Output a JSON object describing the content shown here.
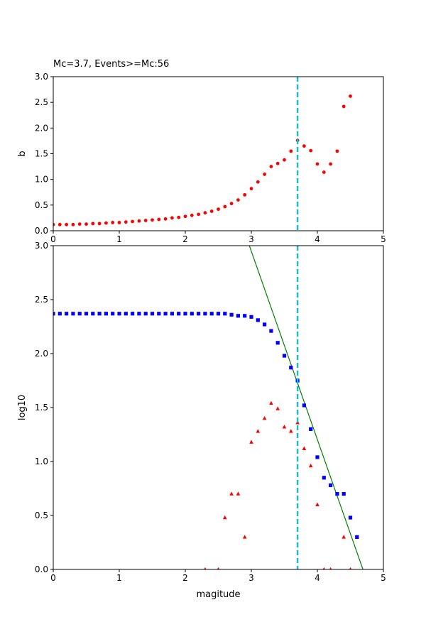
{
  "chart_data": [
    {
      "type": "scatter",
      "title": "Mc=3.7, Events>=Mc:56",
      "xlabel": "",
      "ylabel": "b",
      "xlim": [
        0,
        5
      ],
      "ylim": [
        0,
        3
      ],
      "xticks": [
        "0",
        "1",
        "2",
        "3",
        "4",
        "5"
      ],
      "yticks": [
        "0.0",
        "0.5",
        "1.0",
        "1.5",
        "2.0",
        "2.5",
        "3.0"
      ],
      "grid": false,
      "mc": 3.7,
      "series": [
        {
          "marker": "circle",
          "color": "#ff0000",
          "x": [
            0.0,
            0.1,
            0.2,
            0.3,
            0.4,
            0.5,
            0.6,
            0.7,
            0.8,
            0.9,
            1.0,
            1.1,
            1.2,
            1.3,
            1.4,
            1.5,
            1.6,
            1.7,
            1.8,
            1.9,
            2.0,
            2.1,
            2.2,
            2.3,
            2.4,
            2.5,
            2.6,
            2.7,
            2.8,
            2.9,
            3.0,
            3.1,
            3.2,
            3.3,
            3.4,
            3.5,
            3.6,
            3.7,
            3.8,
            3.9,
            4.0,
            4.1,
            4.2,
            4.3,
            4.4,
            4.5
          ],
          "y": [
            0.12,
            0.12,
            0.12,
            0.12,
            0.13,
            0.13,
            0.14,
            0.14,
            0.15,
            0.16,
            0.16,
            0.17,
            0.18,
            0.19,
            0.2,
            0.21,
            0.22,
            0.23,
            0.25,
            0.26,
            0.28,
            0.3,
            0.32,
            0.35,
            0.38,
            0.42,
            0.47,
            0.53,
            0.6,
            0.7,
            0.82,
            0.95,
            1.1,
            1.25,
            1.31,
            1.38,
            1.55,
            1.76,
            1.65,
            1.56,
            1.3,
            1.14,
            1.3,
            1.55,
            2.42,
            2.62
          ]
        }
      ]
    },
    {
      "type": "scatter",
      "title": "",
      "xlabel": "magitude",
      "ylabel": "log10",
      "xlim": [
        0,
        5
      ],
      "ylim": [
        0,
        3
      ],
      "xticks": [
        "0",
        "1",
        "2",
        "3",
        "4",
        "5"
      ],
      "yticks": [
        "0.0",
        "0.5",
        "1.0",
        "1.5",
        "2.0",
        "2.5",
        "3.0"
      ],
      "grid": false,
      "mc": 3.7,
      "fit_line": {
        "color": "#008000",
        "x": [
          2.97,
          4.69
        ],
        "y": [
          3.0,
          0.0
        ]
      },
      "series": [
        {
          "marker": "square",
          "color": "#0000ff",
          "x": [
            0.0,
            0.1,
            0.2,
            0.3,
            0.4,
            0.5,
            0.6,
            0.7,
            0.8,
            0.9,
            1.0,
            1.1,
            1.2,
            1.3,
            1.4,
            1.5,
            1.6,
            1.7,
            1.8,
            1.9,
            2.0,
            2.1,
            2.2,
            2.3,
            2.4,
            2.5,
            2.6,
            2.7,
            2.8,
            2.9,
            3.0,
            3.1,
            3.2,
            3.3,
            3.4,
            3.5,
            3.6,
            3.7,
            3.8,
            3.9,
            4.0,
            4.1,
            4.2,
            4.3,
            4.4,
            4.5,
            4.6
          ],
          "y": [
            2.37,
            2.37,
            2.37,
            2.37,
            2.37,
            2.37,
            2.37,
            2.37,
            2.37,
            2.37,
            2.37,
            2.37,
            2.37,
            2.37,
            2.37,
            2.37,
            2.37,
            2.37,
            2.37,
            2.37,
            2.37,
            2.37,
            2.37,
            2.37,
            2.37,
            2.37,
            2.37,
            2.36,
            2.35,
            2.35,
            2.34,
            2.31,
            2.27,
            2.21,
            2.1,
            1.98,
            1.87,
            1.75,
            1.52,
            1.3,
            1.04,
            0.85,
            0.78,
            0.7,
            0.7,
            0.48,
            0.3
          ]
        },
        {
          "marker": "triangle",
          "color": "#ff0000",
          "x": [
            2.3,
            2.5,
            2.6,
            2.7,
            2.8,
            2.9,
            3.0,
            3.1,
            3.2,
            3.3,
            3.4,
            3.5,
            3.6,
            3.7,
            3.8,
            3.9,
            4.0,
            4.1,
            4.2,
            4.4,
            4.5
          ],
          "y": [
            0.0,
            0.0,
            0.48,
            0.7,
            0.7,
            0.3,
            1.18,
            1.28,
            1.4,
            1.54,
            1.49,
            1.32,
            1.28,
            1.36,
            1.12,
            0.96,
            0.6,
            0.0,
            0.0,
            0.3,
            0.0
          ]
        }
      ]
    }
  ]
}
